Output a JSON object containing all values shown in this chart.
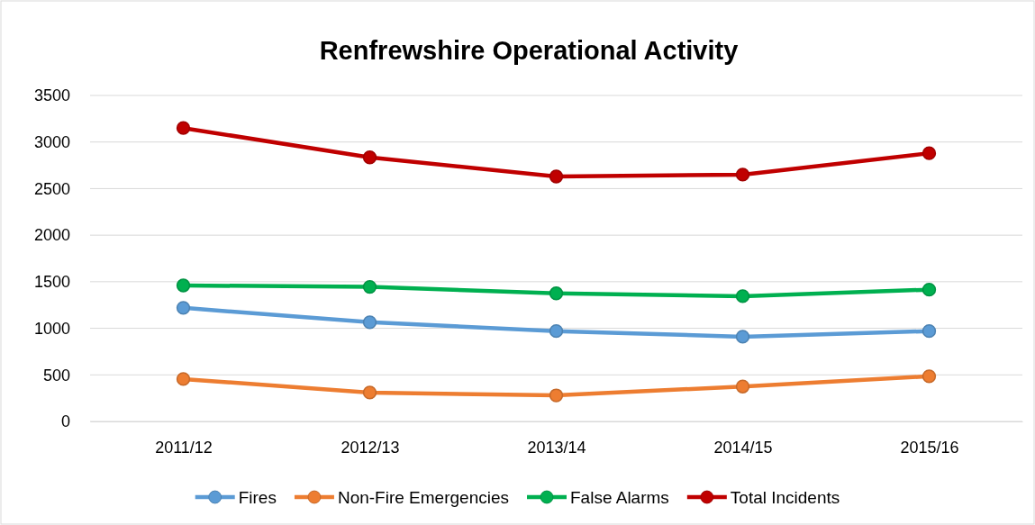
{
  "chart_data": {
    "type": "line",
    "title": "Renfrewshire Operational Activity",
    "categories": [
      "2011/12",
      "2012/13",
      "2013/14",
      "2014/15",
      "2015/16"
    ],
    "series": [
      {
        "name": "Fires",
        "color": "#5b9bd5",
        "values": [
          1220,
          1065,
          970,
          910,
          970
        ]
      },
      {
        "name": "Non-Fire Emergencies",
        "color": "#ed7d31",
        "values": [
          455,
          310,
          280,
          375,
          485
        ]
      },
      {
        "name": "False Alarms",
        "color": "#00b050",
        "values": [
          1460,
          1445,
          1375,
          1345,
          1415
        ]
      },
      {
        "name": "Total Incidents",
        "color": "#c00000",
        "values": [
          3150,
          2835,
          2630,
          2650,
          2880
        ]
      }
    ],
    "ylim": [
      0,
      3500
    ],
    "yticks": [
      0,
      500,
      1000,
      1500,
      2000,
      2500,
      3000,
      3500
    ],
    "grid": "y",
    "legend": "bottom",
    "marker": "circle",
    "line_style": "solid"
  }
}
